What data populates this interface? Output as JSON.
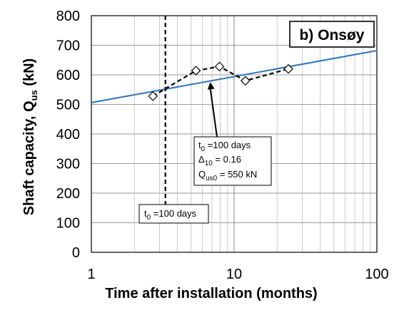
{
  "chart_data": {
    "type": "line",
    "title": "b) Onsøy",
    "xlabel": "Time after installation (months)",
    "ylabel": "Shaft capacity, Q",
    "ylabel_sub": "us",
    "ylabel_unit": " (kN)",
    "xscale": "log",
    "xlim": [
      1,
      100
    ],
    "ylim": [
      0,
      800
    ],
    "x_ticks": [
      1,
      10,
      100
    ],
    "x_tick_labels": [
      "1",
      "10",
      "100"
    ],
    "y_ticks": [
      0,
      100,
      200,
      300,
      400,
      500,
      600,
      700,
      800
    ],
    "y_tick_labels": [
      "0",
      "100",
      "200",
      "300",
      "400",
      "500",
      "600",
      "700",
      "800"
    ],
    "grid": true,
    "colors": {
      "fit": "#2e75b6",
      "measured": "#000000",
      "t0_line": "#000000"
    },
    "series": [
      {
        "style": "dashed-black-diamond-markers",
        "x": [
          2.7,
          5.4,
          7.9,
          12.0,
          24.0
        ],
        "y": [
          528,
          614,
          628,
          580,
          620
        ]
      },
      {
        "style": "solid-blue",
        "x": [
          1,
          100
        ],
        "y": [
          506,
          682
        ]
      }
    ],
    "vline": {
      "x": 3.3,
      "label": "t",
      "label_sub": "0",
      "label_rest": " =100 days"
    },
    "annotation": {
      "lines": [
        {
          "main": "t",
          "sub": "0",
          "rest": " =100 days"
        },
        {
          "main": "Δ",
          "sub": "10",
          "rest": " = 0.16"
        },
        {
          "main": "Q",
          "sub": "us0",
          "rest": " = 550 kN"
        }
      ],
      "arrow_to": {
        "x": 6.8,
        "y": 585
      }
    }
  }
}
